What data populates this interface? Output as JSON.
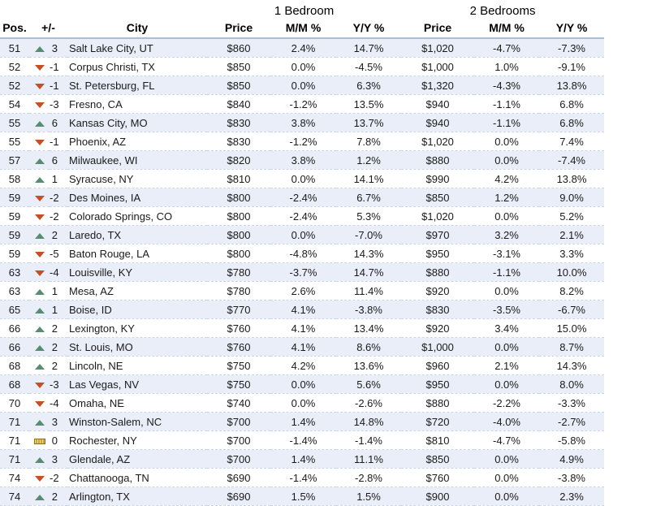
{
  "table": {
    "group_headers": [
      {
        "label": "1 Bedroom"
      },
      {
        "label": "2 Bedrooms"
      }
    ],
    "columns": {
      "pos": "Pos.",
      "change": "+/-",
      "city": "City",
      "br1_price": "Price",
      "br1_mm": "M/M %",
      "br1_yy": "Y/Y %",
      "br2_price": "Price",
      "br2_mm": "M/M %",
      "br2_yy": "Y/Y %"
    },
    "rows": [
      {
        "pos": "51",
        "trend": "up",
        "change": "3",
        "city": "Salt Lake City, UT",
        "br1_price": "$860",
        "br1_mm": "2.4%",
        "br1_yy": "14.7%",
        "br2_price": "$1,020",
        "br2_mm": "-4.7%",
        "br2_yy": "-7.3%"
      },
      {
        "pos": "52",
        "trend": "down",
        "change": "-1",
        "city": "Corpus Christi, TX",
        "br1_price": "$850",
        "br1_mm": "0.0%",
        "br1_yy": "-4.5%",
        "br2_price": "$1,000",
        "br2_mm": "1.0%",
        "br2_yy": "-9.1%"
      },
      {
        "pos": "52",
        "trend": "down",
        "change": "-1",
        "city": "St. Petersburg, FL",
        "br1_price": "$850",
        "br1_mm": "0.0%",
        "br1_yy": "6.3%",
        "br2_price": "$1,320",
        "br2_mm": "-4.3%",
        "br2_yy": "13.8%"
      },
      {
        "pos": "54",
        "trend": "down",
        "change": "-3",
        "city": "Fresno, CA",
        "br1_price": "$840",
        "br1_mm": "-1.2%",
        "br1_yy": "13.5%",
        "br2_price": "$940",
        "br2_mm": "-1.1%",
        "br2_yy": "6.8%"
      },
      {
        "pos": "55",
        "trend": "up",
        "change": "6",
        "city": "Kansas City, MO",
        "br1_price": "$830",
        "br1_mm": "3.8%",
        "br1_yy": "13.7%",
        "br2_price": "$940",
        "br2_mm": "-1.1%",
        "br2_yy": "6.8%"
      },
      {
        "pos": "55",
        "trend": "down",
        "change": "-1",
        "city": "Phoenix, AZ",
        "br1_price": "$830",
        "br1_mm": "-1.2%",
        "br1_yy": "7.8%",
        "br2_price": "$1,020",
        "br2_mm": "0.0%",
        "br2_yy": "7.4%"
      },
      {
        "pos": "57",
        "trend": "up",
        "change": "6",
        "city": "Milwaukee, WI",
        "br1_price": "$820",
        "br1_mm": "3.8%",
        "br1_yy": "1.2%",
        "br2_price": "$880",
        "br2_mm": "0.0%",
        "br2_yy": "-7.4%"
      },
      {
        "pos": "58",
        "trend": "up",
        "change": "1",
        "city": "Syracuse, NY",
        "br1_price": "$810",
        "br1_mm": "0.0%",
        "br1_yy": "14.1%",
        "br2_price": "$990",
        "br2_mm": "4.2%",
        "br2_yy": "13.8%"
      },
      {
        "pos": "59",
        "trend": "down",
        "change": "-2",
        "city": "Des Moines, IA",
        "br1_price": "$800",
        "br1_mm": "-2.4%",
        "br1_yy": "6.7%",
        "br2_price": "$850",
        "br2_mm": "1.2%",
        "br2_yy": "9.0%"
      },
      {
        "pos": "59",
        "trend": "down",
        "change": "-2",
        "city": "Colorado Springs, CO",
        "br1_price": "$800",
        "br1_mm": "-2.4%",
        "br1_yy": "5.3%",
        "br2_price": "$1,020",
        "br2_mm": "0.0%",
        "br2_yy": "5.2%"
      },
      {
        "pos": "59",
        "trend": "up",
        "change": "2",
        "city": "Laredo, TX",
        "br1_price": "$800",
        "br1_mm": "0.0%",
        "br1_yy": "-7.0%",
        "br2_price": "$970",
        "br2_mm": "3.2%",
        "br2_yy": "2.1%"
      },
      {
        "pos": "59",
        "trend": "down",
        "change": "-5",
        "city": "Baton Rouge, LA",
        "br1_price": "$800",
        "br1_mm": "-4.8%",
        "br1_yy": "14.3%",
        "br2_price": "$950",
        "br2_mm": "-3.1%",
        "br2_yy": "3.3%"
      },
      {
        "pos": "63",
        "trend": "down",
        "change": "-4",
        "city": "Louisville, KY",
        "br1_price": "$780",
        "br1_mm": "-3.7%",
        "br1_yy": "14.7%",
        "br2_price": "$880",
        "br2_mm": "-1.1%",
        "br2_yy": "10.0%"
      },
      {
        "pos": "63",
        "trend": "up",
        "change": "1",
        "city": "Mesa, AZ",
        "br1_price": "$780",
        "br1_mm": "2.6%",
        "br1_yy": "11.4%",
        "br2_price": "$920",
        "br2_mm": "0.0%",
        "br2_yy": "8.2%"
      },
      {
        "pos": "65",
        "trend": "up",
        "change": "1",
        "city": "Boise, ID",
        "br1_price": "$770",
        "br1_mm": "4.1%",
        "br1_yy": "-3.8%",
        "br2_price": "$830",
        "br2_mm": "-3.5%",
        "br2_yy": "-6.7%"
      },
      {
        "pos": "66",
        "trend": "up",
        "change": "2",
        "city": "Lexington, KY",
        "br1_price": "$760",
        "br1_mm": "4.1%",
        "br1_yy": "13.4%",
        "br2_price": "$920",
        "br2_mm": "3.4%",
        "br2_yy": "15.0%"
      },
      {
        "pos": "66",
        "trend": "up",
        "change": "2",
        "city": "St. Louis, MO",
        "br1_price": "$760",
        "br1_mm": "4.1%",
        "br1_yy": "8.6%",
        "br2_price": "$1,000",
        "br2_mm": "0.0%",
        "br2_yy": "8.7%"
      },
      {
        "pos": "68",
        "trend": "up",
        "change": "2",
        "city": "Lincoln, NE",
        "br1_price": "$750",
        "br1_mm": "4.2%",
        "br1_yy": "13.6%",
        "br2_price": "$960",
        "br2_mm": "2.1%",
        "br2_yy": "14.3%"
      },
      {
        "pos": "68",
        "trend": "down",
        "change": "-3",
        "city": "Las Vegas, NV",
        "br1_price": "$750",
        "br1_mm": "0.0%",
        "br1_yy": "5.6%",
        "br2_price": "$950",
        "br2_mm": "0.0%",
        "br2_yy": "8.0%"
      },
      {
        "pos": "70",
        "trend": "down",
        "change": "-4",
        "city": "Omaha, NE",
        "br1_price": "$740",
        "br1_mm": "0.0%",
        "br1_yy": "-2.6%",
        "br2_price": "$880",
        "br2_mm": "-2.2%",
        "br2_yy": "-3.3%"
      },
      {
        "pos": "71",
        "trend": "up",
        "change": "3",
        "city": "Winston-Salem, NC",
        "br1_price": "$700",
        "br1_mm": "1.4%",
        "br1_yy": "14.8%",
        "br2_price": "$720",
        "br2_mm": "-4.0%",
        "br2_yy": "-2.7%"
      },
      {
        "pos": "71",
        "trend": "flat",
        "change": "0",
        "city": "Rochester, NY",
        "br1_price": "$700",
        "br1_mm": "-1.4%",
        "br1_yy": "-1.4%",
        "br2_price": "$810",
        "br2_mm": "-4.7%",
        "br2_yy": "-5.8%"
      },
      {
        "pos": "71",
        "trend": "up",
        "change": "3",
        "city": "Glendale, AZ",
        "br1_price": "$700",
        "br1_mm": "1.4%",
        "br1_yy": "11.1%",
        "br2_price": "$850",
        "br2_mm": "0.0%",
        "br2_yy": "4.9%"
      },
      {
        "pos": "74",
        "trend": "down",
        "change": "-2",
        "city": "Chattanooga, TN",
        "br1_price": "$690",
        "br1_mm": "-1.4%",
        "br1_yy": "-2.8%",
        "br2_price": "$760",
        "br2_mm": "0.0%",
        "br2_yy": "-3.8%"
      },
      {
        "pos": "74",
        "trend": "up",
        "change": "2",
        "city": "Arlington, TX",
        "br1_price": "$690",
        "br1_mm": "1.5%",
        "br1_yy": "1.5%",
        "br2_price": "$900",
        "br2_mm": "0.0%",
        "br2_yy": "2.3%"
      }
    ]
  },
  "colors": {
    "trend_up": "#5a8c74",
    "trend_down": "#c2502b",
    "trend_flat": "#cfa53f",
    "row_stripe": "#e9eef8",
    "header_rule": "#a9bfd8",
    "row_separator": "#c9d6e8"
  },
  "chart_data": {
    "type": "table",
    "title": "",
    "group_headers": [
      "1 Bedroom",
      "2 Bedrooms"
    ],
    "columns": [
      "Pos.",
      "+/-",
      "City",
      "1BR Price",
      "1BR M/M %",
      "1BR Y/Y %",
      "2BR Price",
      "2BR M/M %",
      "2BR Y/Y %"
    ],
    "rows": [
      [
        51,
        3,
        "Salt Lake City, UT",
        860,
        2.4,
        14.7,
        1020,
        -4.7,
        -7.3
      ],
      [
        52,
        -1,
        "Corpus Christi, TX",
        850,
        0.0,
        -4.5,
        1000,
        1.0,
        -9.1
      ],
      [
        52,
        -1,
        "St. Petersburg, FL",
        850,
        0.0,
        6.3,
        1320,
        -4.3,
        13.8
      ],
      [
        54,
        -3,
        "Fresno, CA",
        840,
        -1.2,
        13.5,
        940,
        -1.1,
        6.8
      ],
      [
        55,
        6,
        "Kansas City, MO",
        830,
        3.8,
        13.7,
        940,
        -1.1,
        6.8
      ],
      [
        55,
        -1,
        "Phoenix, AZ",
        830,
        -1.2,
        7.8,
        1020,
        0.0,
        7.4
      ],
      [
        57,
        6,
        "Milwaukee, WI",
        820,
        3.8,
        1.2,
        880,
        0.0,
        -7.4
      ],
      [
        58,
        1,
        "Syracuse, NY",
        810,
        0.0,
        14.1,
        990,
        4.2,
        13.8
      ],
      [
        59,
        -2,
        "Des Moines, IA",
        800,
        -2.4,
        6.7,
        850,
        1.2,
        9.0
      ],
      [
        59,
        -2,
        "Colorado Springs, CO",
        800,
        -2.4,
        5.3,
        1020,
        0.0,
        5.2
      ],
      [
        59,
        2,
        "Laredo, TX",
        800,
        0.0,
        -7.0,
        970,
        3.2,
        2.1
      ],
      [
        59,
        -5,
        "Baton Rouge, LA",
        800,
        -4.8,
        14.3,
        950,
        -3.1,
        3.3
      ],
      [
        63,
        -4,
        "Louisville, KY",
        780,
        -3.7,
        14.7,
        880,
        -1.1,
        10.0
      ],
      [
        63,
        1,
        "Mesa, AZ",
        780,
        2.6,
        11.4,
        920,
        0.0,
        8.2
      ],
      [
        65,
        1,
        "Boise, ID",
        770,
        4.1,
        -3.8,
        830,
        -3.5,
        -6.7
      ],
      [
        66,
        2,
        "Lexington, KY",
        760,
        4.1,
        13.4,
        920,
        3.4,
        15.0
      ],
      [
        66,
        2,
        "St. Louis, MO",
        760,
        4.1,
        8.6,
        1000,
        0.0,
        8.7
      ],
      [
        68,
        2,
        "Lincoln, NE",
        750,
        4.2,
        13.6,
        960,
        2.1,
        14.3
      ],
      [
        68,
        -3,
        "Las Vegas, NV",
        750,
        0.0,
        5.6,
        950,
        0.0,
        8.0
      ],
      [
        70,
        -4,
        "Omaha, NE",
        740,
        0.0,
        -2.6,
        880,
        -2.2,
        -3.3
      ],
      [
        71,
        3,
        "Winston-Salem, NC",
        700,
        1.4,
        14.8,
        720,
        -4.0,
        -2.7
      ],
      [
        71,
        0,
        "Rochester, NY",
        700,
        -1.4,
        -1.4,
        810,
        -4.7,
        -5.8
      ],
      [
        71,
        3,
        "Glendale, AZ",
        700,
        1.4,
        11.1,
        850,
        0.0,
        4.9
      ],
      [
        74,
        -2,
        "Chattanooga, TN",
        690,
        -1.4,
        -2.8,
        760,
        0.0,
        -3.8
      ],
      [
        74,
        2,
        "Arlington, TX",
        690,
        1.5,
        1.5,
        900,
        0.0,
        2.3
      ]
    ]
  }
}
